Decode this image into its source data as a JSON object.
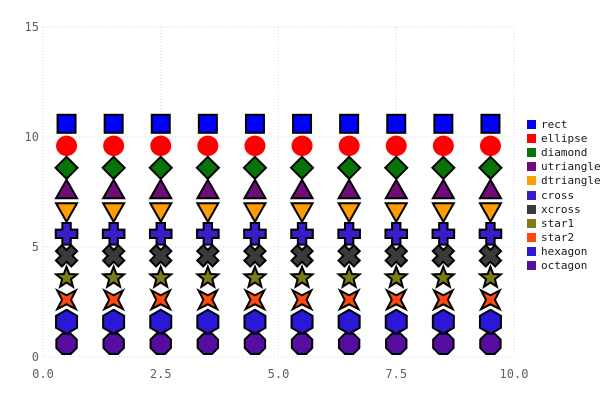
{
  "background": "#ffffff",
  "chart_data": {
    "type": "scatter",
    "title": "",
    "xlabel": "",
    "ylabel": "",
    "xlim": [
      0,
      10
    ],
    "ylim": [
      0,
      15
    ],
    "x": [
      0.5,
      1.5,
      2.5,
      3.5,
      4.5,
      5.5,
      6.5,
      7.5,
      8.5,
      9.5
    ],
    "xticks": {
      "values": [
        0,
        2.5,
        5,
        7.5,
        10
      ],
      "labels": [
        "0.0",
        "2.5",
        "5.0",
        "7.5",
        "10.0"
      ]
    },
    "yticks": {
      "values": [
        0,
        5,
        10,
        15
      ],
      "labels": [
        "0",
        "5",
        "10",
        "15"
      ]
    },
    "grid": {
      "style": "dotted",
      "color": "#d8d8e0",
      "on": true
    },
    "axis_text_color": "#606060",
    "legend": {
      "position": "right",
      "text_color": "#1a1a1a"
    },
    "marker_stroke": "#000000",
    "series": [
      {
        "name": "rect",
        "marker": "rect",
        "color": "#0000ff",
        "y": 10.6
      },
      {
        "name": "ellipse",
        "marker": "ellipse",
        "color": "#ff0000",
        "y": 9.6
      },
      {
        "name": "diamond",
        "marker": "diamond",
        "color": "#087408",
        "y": 8.6
      },
      {
        "name": "utriangle",
        "marker": "utriangle",
        "color": "#6e0d7a",
        "y": 7.6
      },
      {
        "name": "dtriangle",
        "marker": "dtriangle",
        "color": "#ff9d00",
        "y": 6.6
      },
      {
        "name": "cross",
        "marker": "cross",
        "color": "#3a1dc9",
        "y": 5.6
      },
      {
        "name": "xcross",
        "marker": "xcross",
        "color": "#3a3a3a",
        "y": 4.6
      },
      {
        "name": "star1",
        "marker": "star1",
        "color": "#7c7c12",
        "y": 3.6
      },
      {
        "name": "star2",
        "marker": "star2",
        "color": "#ff4a0d",
        "y": 2.6
      },
      {
        "name": "hexagon",
        "marker": "hexagon",
        "color": "#2a18d6",
        "y": 1.6
      },
      {
        "name": "octagon",
        "marker": "octagon",
        "color": "#560da2",
        "y": 0.6
      }
    ]
  }
}
